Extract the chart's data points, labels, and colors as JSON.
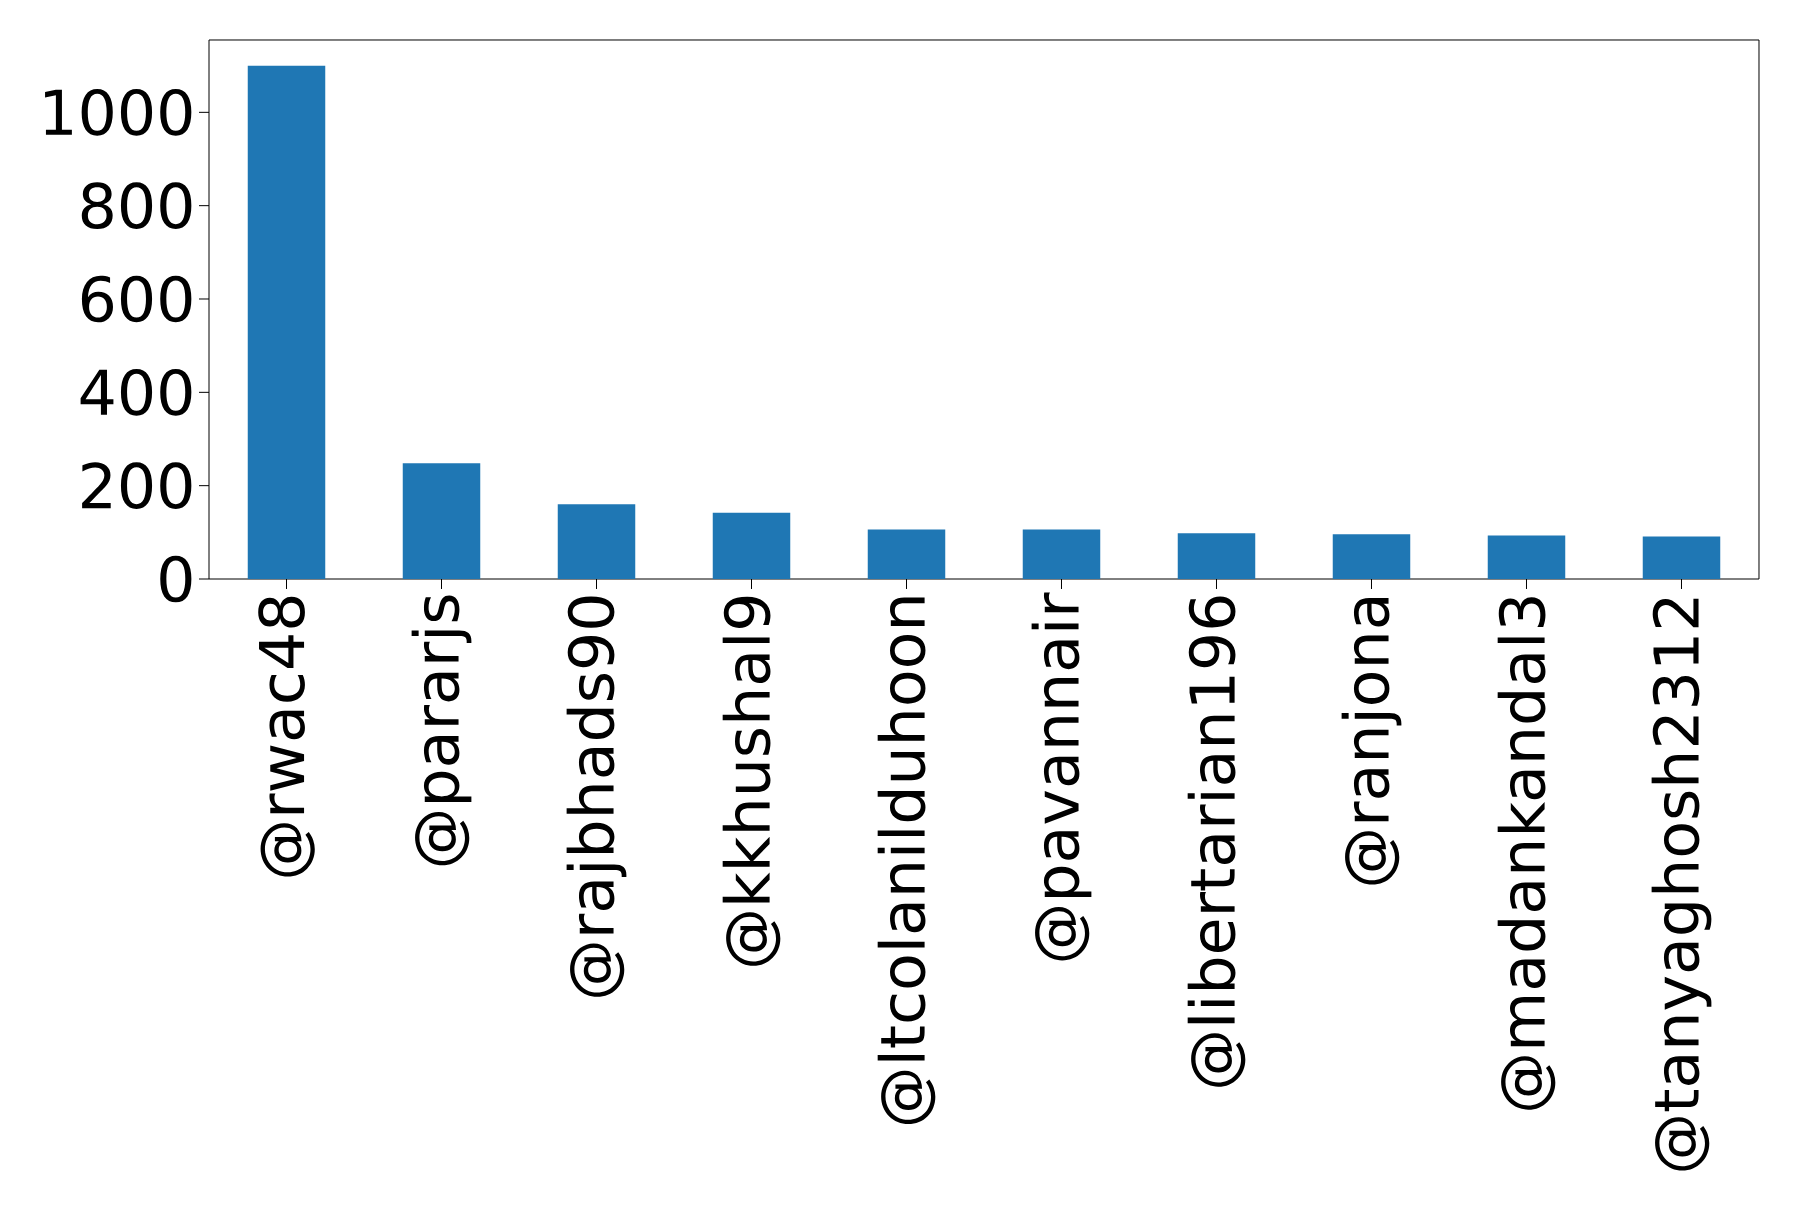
{
  "chart_data": {
    "type": "bar",
    "categories": [
      "@rwac48",
      "@pararjs",
      "@rajbhads90",
      "@kkhushal9",
      "@ltcolanilduhoon",
      "@pavannair",
      "@libertarian196",
      "@ranjona",
      "@madankandal3",
      "@tanyaghosh2312"
    ],
    "values": [
      1100,
      248,
      160,
      142,
      106,
      106,
      98,
      96,
      93,
      91
    ],
    "color": "#1f77b4",
    "ylim": [
      0,
      1155
    ],
    "yticks": [
      0,
      200,
      400,
      600,
      800,
      1000
    ],
    "grid": false
  }
}
